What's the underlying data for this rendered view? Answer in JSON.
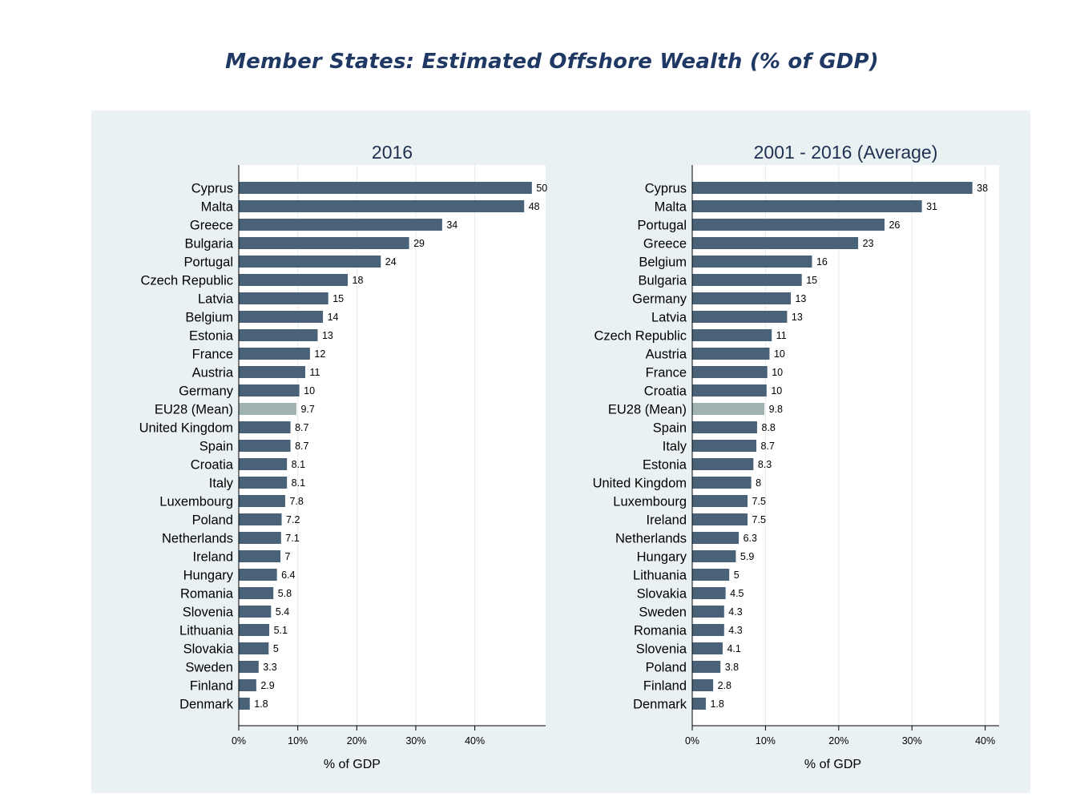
{
  "page": {
    "title": "Member States: Estimated Offshore Wealth (% of GDP)"
  },
  "colors": {
    "bar": "#4a6278",
    "mean_bar": "#9fb3b2",
    "panel_bg": "#eaf1f3",
    "plot_bg": "#ffffff",
    "grid": "#e3ebee",
    "title": "#1f3864"
  },
  "chart_data": [
    {
      "type": "bar",
      "orientation": "horizontal",
      "title": "2016",
      "xlabel": "% of GDP",
      "ylabel": "",
      "xlim": [
        0,
        52
      ],
      "xticks": [
        0,
        10,
        20,
        30,
        40
      ],
      "xtick_labels": [
        "0%",
        "10%",
        "20%",
        "30%",
        "40%"
      ],
      "grid": true,
      "highlight_category": "EU28 (Mean)",
      "categories": [
        "Cyprus",
        "Malta",
        "Greece",
        "Bulgaria",
        "Portugal",
        "Czech Republic",
        "Latvia",
        "Belgium",
        "Estonia",
        "France",
        "Austria",
        "Germany",
        "EU28 (Mean)",
        "United Kingdom",
        "Spain",
        "Croatia",
        "Italy",
        "Luxembourg",
        "Poland",
        "Netherlands",
        "Ireland",
        "Hungary",
        "Romania",
        "Slovenia",
        "Lithuania",
        "Slovakia",
        "Sweden",
        "Finland",
        "Denmark"
      ],
      "values": [
        49.6,
        48.3,
        34.4,
        28.8,
        24.0,
        18.4,
        15.1,
        14.2,
        13.3,
        12.0,
        11.2,
        10.2,
        9.7,
        8.7,
        8.7,
        8.1,
        8.1,
        7.8,
        7.2,
        7.1,
        7.0,
        6.4,
        5.8,
        5.4,
        5.1,
        5.0,
        3.3,
        2.9,
        1.8
      ],
      "value_labels": [
        "50",
        "48",
        "34",
        "29",
        "24",
        "18",
        "15",
        "14",
        "13",
        "12",
        "11",
        "10",
        "9.7",
        "8.7",
        "8.7",
        "8.1",
        "8.1",
        "7.8",
        "7.2",
        "7.1",
        "7",
        "6.4",
        "5.8",
        "5.4",
        "5.1",
        "5",
        "3.3",
        "2.9",
        "1.8"
      ]
    },
    {
      "type": "bar",
      "orientation": "horizontal",
      "title": "2001 - 2016 (Average)",
      "xlabel": "% of GDP",
      "ylabel": "",
      "xlim": [
        0,
        41.9
      ],
      "xticks": [
        0,
        10,
        20,
        30,
        40
      ],
      "xtick_labels": [
        "0%",
        "10%",
        "20%",
        "30%",
        "40%"
      ],
      "grid": true,
      "highlight_category": "EU28 (Mean)",
      "categories": [
        "Cyprus",
        "Malta",
        "Portugal",
        "Greece",
        "Belgium",
        "Bulgaria",
        "Germany",
        "Latvia",
        "Czech Republic",
        "Austria",
        "France",
        "Croatia",
        "EU28 (Mean)",
        "Spain",
        "Italy",
        "Estonia",
        "United Kingdom",
        "Luxembourg",
        "Ireland",
        "Netherlands",
        "Hungary",
        "Lithuania",
        "Slovakia",
        "Sweden",
        "Romania",
        "Slovenia",
        "Poland",
        "Finland",
        "Denmark"
      ],
      "values": [
        38.2,
        31.3,
        26.2,
        22.6,
        16.3,
        14.9,
        13.4,
        12.9,
        10.8,
        10.5,
        10.2,
        10.1,
        9.8,
        8.8,
        8.7,
        8.3,
        8.0,
        7.5,
        7.5,
        6.3,
        5.9,
        5.0,
        4.5,
        4.3,
        4.3,
        4.1,
        3.8,
        2.8,
        1.8
      ],
      "value_labels": [
        "38",
        "31",
        "26",
        "23",
        "16",
        "15",
        "13",
        "13",
        "11",
        "10",
        "10",
        "10",
        "9.8",
        "8.8",
        "8.7",
        "8.3",
        "8",
        "7.5",
        "7.5",
        "6.3",
        "5.9",
        "5",
        "4.5",
        "4.3",
        "4.3",
        "4.1",
        "3.8",
        "2.8",
        "1.8"
      ]
    }
  ]
}
